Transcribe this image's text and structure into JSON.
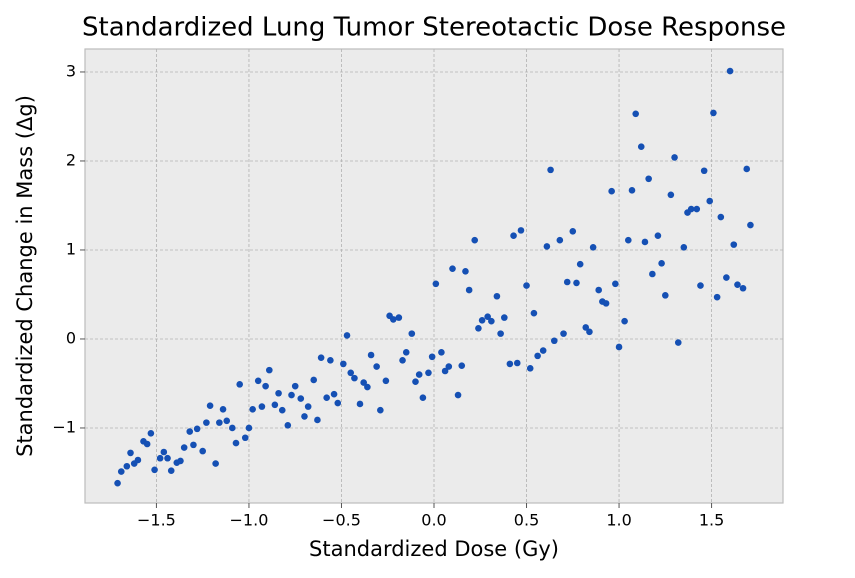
{
  "chart_data": {
    "type": "scatter",
    "title": "Standardized Lung Tumor Stereotactic Dose Response",
    "x_label": "Standardized Dose (Gy)",
    "y_label": "Standardized Change in Mass (Δg)",
    "color": "#1550b4",
    "grid": true,
    "xlim": [
      -1.886,
      1.886
    ],
    "ylim": [
      -1.843,
      3.258
    ],
    "xticks": [
      {
        "value": -1.5,
        "label": "−1.5"
      },
      {
        "value": -1.0,
        "label": "−1.0"
      },
      {
        "value": -0.5,
        "label": "−0.5"
      },
      {
        "value": 0,
        "label": "0.0"
      },
      0.5,
      {
        "value": 1,
        "label": "1.0"
      },
      1.5
    ],
    "yticks": [
      {
        "value": -1,
        "label": "−1"
      },
      0,
      1,
      2,
      3
    ],
    "x": [
      -1.71,
      -1.69,
      -1.66,
      -1.64,
      -1.62,
      -1.6,
      -1.57,
      -1.55,
      -1.53,
      -1.51,
      -1.48,
      -1.46,
      -1.44,
      -1.42,
      -1.39,
      -1.37,
      -1.35,
      -1.32,
      -1.3,
      -1.28,
      -1.25,
      -1.23,
      -1.21,
      -1.18,
      -1.16,
      -1.14,
      -1.12,
      -1.09,
      -1.07,
      -1.05,
      -1.02,
      -1.0,
      -0.98,
      -0.95,
      -0.93,
      -0.91,
      -0.89,
      -0.86,
      -0.84,
      -0.82,
      -0.79,
      -0.77,
      -0.75,
      -0.72,
      -0.7,
      -0.68,
      -0.65,
      -0.63,
      -0.61,
      -0.58,
      -0.56,
      -0.54,
      -0.52,
      -0.49,
      -0.47,
      -0.45,
      -0.43,
      -0.4,
      -0.38,
      -0.36,
      -0.34,
      -0.31,
      -0.29,
      -0.26,
      -0.24,
      -0.22,
      -0.19,
      -0.17,
      -0.15,
      -0.12,
      -0.1,
      -0.08,
      -0.06,
      -0.03,
      -0.01,
      0.01,
      0.04,
      0.06,
      0.08,
      0.1,
      0.13,
      0.15,
      0.17,
      0.19,
      0.22,
      0.24,
      0.26,
      0.29,
      0.31,
      0.34,
      0.36,
      0.38,
      0.41,
      0.43,
      0.45,
      0.47,
      0.5,
      0.52,
      0.54,
      0.56,
      0.59,
      0.61,
      0.63,
      0.65,
      0.68,
      0.7,
      0.72,
      0.75,
      0.77,
      0.79,
      0.82,
      0.84,
      0.86,
      0.89,
      0.91,
      0.93,
      0.96,
      0.98,
      1.0,
      1.03,
      1.05,
      1.07,
      1.09,
      1.12,
      1.14,
      1.16,
      1.18,
      1.21,
      1.23,
      1.25,
      1.28,
      1.3,
      1.32,
      1.35,
      1.37,
      1.39,
      1.42,
      1.44,
      1.46,
      1.49,
      1.51,
      1.53,
      1.55,
      1.58,
      1.6,
      1.62,
      1.64,
      1.67,
      1.69,
      1.71
    ],
    "values": [
      -1.62,
      -1.49,
      -1.43,
      -1.28,
      -1.4,
      -1.36,
      -1.15,
      -1.18,
      -1.06,
      -1.47,
      -1.34,
      -1.27,
      -1.34,
      -1.48,
      -1.39,
      -1.37,
      -1.22,
      -1.04,
      -1.19,
      -1.01,
      -1.26,
      -0.94,
      -0.75,
      -1.4,
      -0.94,
      -0.79,
      -0.92,
      -1.0,
      -1.17,
      -0.51,
      -1.11,
      -1.0,
      -0.79,
      -0.47,
      -0.76,
      -0.53,
      -0.35,
      -0.74,
      -0.61,
      -0.8,
      -0.97,
      -0.63,
      -0.53,
      -0.67,
      -0.87,
      -0.76,
      -0.46,
      -0.91,
      -0.21,
      -0.66,
      -0.24,
      -0.62,
      -0.72,
      -0.28,
      0.04,
      -0.38,
      -0.44,
      -0.73,
      -0.49,
      -0.54,
      -0.18,
      -0.31,
      -0.8,
      -0.47,
      0.26,
      0.22,
      0.24,
      -0.24,
      -0.15,
      0.06,
      -0.48,
      -0.4,
      -0.66,
      -0.38,
      -0.2,
      0.62,
      -0.15,
      -0.36,
      -0.31,
      0.79,
      -0.63,
      -0.3,
      0.76,
      0.55,
      1.11,
      0.12,
      0.21,
      0.25,
      0.2,
      0.48,
      0.06,
      0.24,
      -0.28,
      1.16,
      -0.27,
      1.22,
      0.6,
      -0.33,
      0.29,
      -0.19,
      -0.13,
      1.04,
      1.9,
      -0.02,
      1.11,
      0.06,
      0.64,
      1.21,
      0.63,
      0.84,
      0.13,
      0.08,
      1.03,
      0.55,
      0.42,
      0.4,
      1.66,
      0.62,
      -0.09,
      0.2,
      1.11,
      1.67,
      2.53,
      2.16,
      1.09,
      1.8,
      0.73,
      1.16,
      0.85,
      0.49,
      1.62,
      2.04,
      -0.04,
      1.03,
      1.42,
      1.46,
      1.46,
      0.6,
      1.89,
      1.55,
      2.54,
      0.47,
      1.37,
      0.69,
      3.01,
      1.06,
      0.61,
      0.57,
      1.91,
      1.28
    ]
  }
}
